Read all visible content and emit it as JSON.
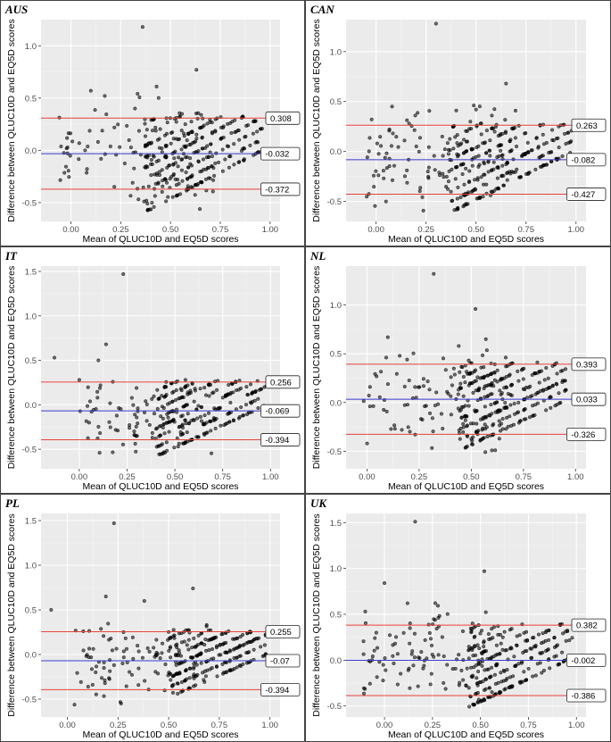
{
  "chart_data": [
    {
      "type": "scatter",
      "country": "AUS",
      "xlabel": "Mean of QLUC10D and EQ5D scores",
      "ylabel": "Difference between QLUC10D and EQ5D scores",
      "xlim": [
        -0.15,
        1.05
      ],
      "ylim": [
        -0.68,
        1.25
      ],
      "xticks": [
        "0.00",
        "0.25",
        "0.50",
        "0.75",
        "1.00"
      ],
      "xtick_values": [
        0,
        0.25,
        0.5,
        0.75,
        1.0
      ],
      "yticks": [
        "-0.5",
        "0.0",
        "0.5",
        "1.0"
      ],
      "ytick_values": [
        -0.5,
        0,
        0.5,
        1.0
      ],
      "upper_loa": 0.308,
      "mean_diff": -0.032,
      "lower_loa": -0.372,
      "upper_label": "0.308",
      "mean_label": "-0.032",
      "lower_label": "-0.372",
      "scatter": {
        "seed": 11,
        "n_diag": 340,
        "diag_xmin": 0.36,
        "diag_xmax": 0.96,
        "diag_c": -0.96,
        "diag_step": 0.105,
        "n_scatter": 120,
        "sc_xmin": -0.07,
        "sc_xmax": 0.72,
        "sc_ymin": -0.6,
        "sc_ymax": 0.6,
        "outliers": [
          [
            0.36,
            1.18
          ],
          [
            0.63,
            0.77
          ],
          [
            0.43,
            0.61
          ],
          [
            0.1,
            0.57
          ],
          [
            0.17,
            0.52
          ]
        ]
      }
    },
    {
      "type": "scatter",
      "country": "CAN",
      "xlabel": "Mean of QLUC10D and EQ5D scores",
      "ylabel": "Difference between QLUC10D and EQ5D scores",
      "xlim": [
        -0.15,
        1.05
      ],
      "ylim": [
        -0.7,
        1.32
      ],
      "xticks": [
        "0.00",
        "0.25",
        "0.50",
        "0.75",
        "1.00"
      ],
      "xtick_values": [
        0,
        0.25,
        0.5,
        0.75,
        1.0
      ],
      "yticks": [
        "-0.5",
        "0.0",
        "0.5",
        "1.0"
      ],
      "ytick_values": [
        -0.5,
        0,
        0.5,
        1.0
      ],
      "upper_loa": 0.263,
      "mean_diff": -0.082,
      "lower_loa": -0.427,
      "upper_label": "0.263",
      "mean_label": "-0.082",
      "lower_label": "-0.427",
      "scatter": {
        "seed": 23,
        "n_diag": 360,
        "diag_xmin": 0.36,
        "diag_xmax": 0.98,
        "diag_c": -0.98,
        "diag_step": 0.105,
        "n_scatter": 110,
        "sc_xmin": -0.05,
        "sc_xmax": 0.72,
        "sc_ymin": -0.65,
        "sc_ymax": 0.5,
        "outliers": [
          [
            0.3,
            1.28
          ],
          [
            0.65,
            0.68
          ],
          [
            0.08,
            0.45
          ],
          [
            0.5,
            0.42
          ]
        ]
      }
    },
    {
      "type": "scatter",
      "country": "IT",
      "xlabel": "Mean of QLUC10D and EQ5D scores",
      "ylabel": "Difference between QLUC10D and EQ5D scores",
      "xlim": [
        -0.2,
        1.05
      ],
      "ylim": [
        -0.72,
        1.56
      ],
      "xticks": [
        "0.00",
        "0.25",
        "0.50",
        "0.75",
        "1.00"
      ],
      "xtick_values": [
        0,
        0.25,
        0.5,
        0.75,
        1.0
      ],
      "yticks": [
        "-0.5",
        "0.0",
        "0.5",
        "1.0",
        "1.5"
      ],
      "ytick_values": [
        -0.5,
        0,
        0.5,
        1.0,
        1.5
      ],
      "upper_loa": 0.256,
      "mean_diff": -0.069,
      "lower_loa": -0.394,
      "upper_label": "0.256",
      "mean_label": "-0.069",
      "lower_label": "-0.394",
      "scatter": {
        "seed": 37,
        "n_diag": 340,
        "diag_xmin": 0.4,
        "diag_xmax": 0.98,
        "diag_c": -0.98,
        "diag_step": 0.105,
        "n_scatter": 95,
        "sc_xmin": 0.0,
        "sc_xmax": 0.72,
        "sc_ymin": -0.6,
        "sc_ymax": 0.45,
        "outliers": [
          [
            0.23,
            1.47
          ],
          [
            0.14,
            0.68
          ],
          [
            -0.13,
            0.53
          ],
          [
            0.1,
            0.5
          ],
          [
            0.0,
            0.28
          ]
        ]
      }
    },
    {
      "type": "scatter",
      "country": "NL",
      "xlabel": "Mean of QLUC10D and EQ5D scores",
      "ylabel": "Difference between QLUC10D and EQ5D scores",
      "xlim": [
        -0.1,
        1.05
      ],
      "ylim": [
        -0.68,
        1.4
      ],
      "xticks": [
        "0.00",
        "0.25",
        "0.50",
        "0.75",
        "1.00"
      ],
      "xtick_values": [
        0,
        0.25,
        0.5,
        0.75,
        1.0
      ],
      "yticks": [
        "-0.5",
        "0.0",
        "0.5",
        "1.0"
      ],
      "ytick_values": [
        -0.5,
        0,
        0.5,
        1.0
      ],
      "upper_loa": 0.393,
      "mean_diff": 0.033,
      "lower_loa": -0.326,
      "upper_label": "0.393",
      "mean_label": "0.033",
      "lower_label": "-0.326",
      "scatter": {
        "seed": 41,
        "n_diag": 330,
        "diag_xmin": 0.44,
        "diag_xmax": 0.96,
        "diag_c": -0.93,
        "diag_step": 0.105,
        "n_scatter": 120,
        "sc_xmin": -0.02,
        "sc_xmax": 0.68,
        "sc_ymin": -0.55,
        "sc_ymax": 0.6,
        "outliers": [
          [
            0.32,
            1.32
          ],
          [
            0.52,
            0.96
          ],
          [
            0.1,
            0.67
          ],
          [
            0.57,
            0.65
          ],
          [
            0.44,
            0.58
          ]
        ]
      }
    },
    {
      "type": "scatter",
      "country": "PL",
      "xlabel": "Mean of QLUC10D and EQ5D scores",
      "ylabel": "Difference between QLUC10D and EQ5D scores",
      "xlim": [
        -0.13,
        1.05
      ],
      "ylim": [
        -0.7,
        1.58
      ],
      "xticks": [
        "0.00",
        "0.25",
        "0.50",
        "0.75",
        "1.00"
      ],
      "xtick_values": [
        0,
        0.25,
        0.5,
        0.75,
        1.0
      ],
      "yticks": [
        "-0.5",
        "0.0",
        "0.5",
        "1.0",
        "1.5"
      ],
      "ytick_values": [
        -0.5,
        0,
        0.5,
        1.0,
        1.5
      ],
      "upper_loa": 0.255,
      "mean_diff": -0.07,
      "lower_loa": -0.394,
      "upper_label": "0.255",
      "mean_label": "-0.07",
      "lower_label": "-0.394",
      "scatter": {
        "seed": 53,
        "n_diag": 380,
        "diag_xmin": 0.5,
        "diag_xmax": 0.98,
        "diag_c": -0.98,
        "diag_step": 0.11,
        "n_scatter": 110,
        "sc_xmin": 0.02,
        "sc_xmax": 0.7,
        "sc_ymin": -0.6,
        "sc_ymax": 0.45,
        "outliers": [
          [
            0.23,
            1.47
          ],
          [
            0.19,
            0.65
          ],
          [
            0.62,
            0.74
          ],
          [
            -0.08,
            0.5
          ],
          [
            0.38,
            0.6
          ]
        ]
      }
    },
    {
      "type": "scatter",
      "country": "UK",
      "xlabel": "Mean of QLUC10D and EQ5D scores",
      "ylabel": "Difference between QLUC10D and EQ5D scores",
      "xlim": [
        -0.2,
        1.05
      ],
      "ylim": [
        -0.62,
        1.6
      ],
      "xticks": [
        "0.00",
        "0.25",
        "0.50",
        "0.75",
        "1.00"
      ],
      "xtick_values": [
        0,
        0.25,
        0.5,
        0.75,
        1.0
      ],
      "yticks": [
        "-0.5",
        "0.0",
        "0.5",
        "1.0",
        "1.5"
      ],
      "ytick_values": [
        -0.5,
        0,
        0.5,
        1.0,
        1.5
      ],
      "upper_loa": 0.382,
      "mean_diff": -0.002,
      "lower_loa": -0.386,
      "upper_label": "0.382",
      "mean_label": "-0.002",
      "lower_label": "-0.386",
      "scatter": {
        "seed": 67,
        "n_diag": 300,
        "diag_xmin": 0.44,
        "diag_xmax": 0.98,
        "diag_c": -0.95,
        "diag_step": 0.105,
        "n_scatter": 120,
        "sc_xmin": -0.12,
        "sc_xmax": 0.62,
        "sc_ymin": -0.45,
        "sc_ymax": 0.65,
        "outliers": [
          [
            0.16,
            1.51
          ],
          [
            0.52,
            0.97
          ],
          [
            0.0,
            0.84
          ],
          [
            0.12,
            0.62
          ],
          [
            -0.1,
            0.53
          ]
        ]
      }
    }
  ],
  "colors": {
    "panel_bg": "#ebebeb",
    "grid_major": "#ffffff",
    "upper_lower_line": "#e8413a",
    "mean_line": "#3b3bd0",
    "point": "#000000"
  }
}
